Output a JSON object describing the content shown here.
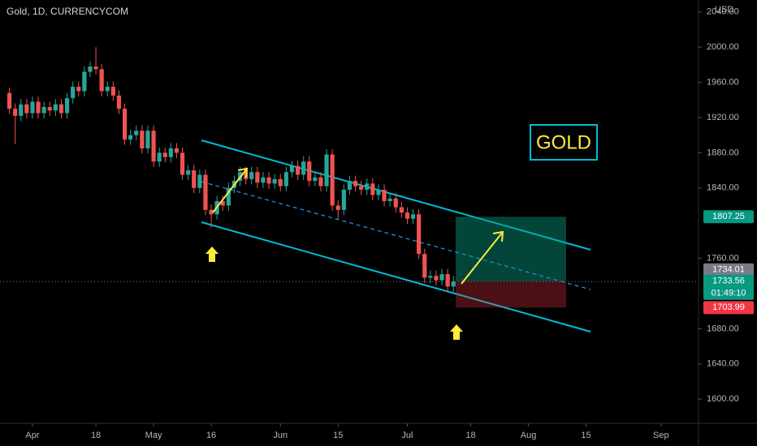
{
  "chart_data": {
    "type": "candlestick",
    "title": "Gold, 1D, CURRENCYCOM",
    "y_unit": "USD",
    "annotation": "GOLD",
    "up_color": "#26a69a",
    "down_color": "#ef5350",
    "x": [
      -4,
      -3,
      -2,
      -1,
      0,
      1,
      2,
      3,
      4,
      5,
      6,
      7,
      8,
      9,
      10,
      11,
      12,
      13,
      14,
      15,
      16,
      17,
      18,
      19,
      20,
      21,
      22,
      23,
      24,
      25,
      26,
      27,
      28,
      29,
      30,
      31,
      32,
      33,
      34,
      35,
      36,
      37,
      38,
      39,
      40,
      41,
      42,
      43,
      44,
      45,
      46,
      47,
      48,
      49,
      50,
      51,
      52,
      53,
      54,
      55,
      56,
      57,
      58,
      59,
      60,
      61,
      62,
      63,
      64,
      65,
      66,
      67,
      68,
      69,
      70,
      71,
      72,
      73
    ],
    "open": [
      1948,
      1930,
      1922,
      1935,
      1925,
      1938,
      1925,
      1932,
      1928,
      1935,
      1925,
      1942,
      1955,
      1950,
      1972,
      1978,
      1975,
      1950,
      1955,
      1945,
      1930,
      1895,
      1900,
      1905,
      1885,
      1905,
      1870,
      1880,
      1875,
      1885,
      1880,
      1855,
      1860,
      1840,
      1855,
      1815,
      1810,
      1825,
      1820,
      1840,
      1848,
      1858,
      1850,
      1858,
      1846,
      1852,
      1845,
      1850,
      1842,
      1858,
      1865,
      1855,
      1870,
      1848,
      1852,
      1842,
      1878,
      1820,
      1815,
      1838,
      1848,
      1842,
      1838,
      1845,
      1832,
      1838,
      1825,
      1828,
      1818,
      1812,
      1805,
      1810,
      1765,
      1738,
      1740,
      1735,
      1742,
      1728
    ],
    "high": [
      1954,
      1936,
      1941,
      1941,
      1944,
      1944,
      1938,
      1938,
      1941,
      1941,
      1948,
      1961,
      1961,
      1978,
      1984,
      2000,
      1981,
      1961,
      1961,
      1951,
      1936,
      1906,
      1911,
      1911,
      1911,
      1911,
      1886,
      1886,
      1891,
      1891,
      1886,
      1866,
      1866,
      1861,
      1861,
      1821,
      1831,
      1831,
      1846,
      1854,
      1864,
      1864,
      1864,
      1864,
      1858,
      1858,
      1856,
      1856,
      1864,
      1871,
      1871,
      1876,
      1876,
      1858,
      1858,
      1884,
      1884,
      1826,
      1844,
      1854,
      1854,
      1848,
      1851,
      1851,
      1844,
      1844,
      1834,
      1834,
      1824,
      1818,
      1816,
      1816,
      1771,
      1746,
      1746,
      1748,
      1748,
      1740
    ],
    "low": [
      1924,
      1890,
      1916,
      1919,
      1919,
      1919,
      1919,
      1922,
      1922,
      1919,
      1919,
      1936,
      1944,
      1944,
      1966,
      1969,
      1944,
      1944,
      1939,
      1924,
      1889,
      1889,
      1894,
      1879,
      1879,
      1864,
      1864,
      1869,
      1869,
      1874,
      1849,
      1849,
      1834,
      1834,
      1809,
      1795,
      1804,
      1814,
      1814,
      1834,
      1842,
      1844,
      1844,
      1840,
      1840,
      1839,
      1839,
      1836,
      1836,
      1852,
      1849,
      1849,
      1842,
      1842,
      1836,
      1836,
      1814,
      1805,
      1809,
      1832,
      1836,
      1832,
      1832,
      1826,
      1826,
      1819,
      1819,
      1812,
      1806,
      1799,
      1799,
      1759,
      1732,
      1732,
      1729,
      1729,
      1722,
      1722
    ],
    "close": [
      1930,
      1922,
      1935,
      1925,
      1938,
      1925,
      1932,
      1928,
      1935,
      1925,
      1942,
      1955,
      1950,
      1972,
      1978,
      1975,
      1950,
      1955,
      1945,
      1930,
      1895,
      1900,
      1905,
      1885,
      1905,
      1870,
      1880,
      1875,
      1885,
      1880,
      1855,
      1860,
      1840,
      1855,
      1815,
      1810,
      1825,
      1820,
      1840,
      1848,
      1858,
      1850,
      1858,
      1846,
      1852,
      1845,
      1850,
      1842,
      1858,
      1865,
      1855,
      1870,
      1848,
      1852,
      1842,
      1878,
      1820,
      1815,
      1838,
      1848,
      1842,
      1838,
      1845,
      1832,
      1838,
      1825,
      1828,
      1818,
      1812,
      1805,
      1810,
      1765,
      1738,
      1740,
      1735,
      1742,
      1728,
      1733.56
    ],
    "xlim": [
      -5.63,
      115.5
    ],
    "xticks": [
      {
        "value": 0,
        "label": "Apr"
      },
      {
        "value": 11,
        "label": "18"
      },
      {
        "value": 21,
        "label": "May"
      },
      {
        "value": 31,
        "label": "16"
      },
      {
        "value": 43,
        "label": "Jun"
      },
      {
        "value": 53,
        "label": "15"
      },
      {
        "value": 65,
        "label": "Jul"
      },
      {
        "value": 76,
        "label": "18"
      },
      {
        "value": 86,
        "label": "Aug"
      },
      {
        "value": 96,
        "label": "15"
      },
      {
        "value": 109,
        "label": "Sep"
      }
    ],
    "ylim": [
      1572.5,
      2053.6
    ],
    "yticks": [
      {
        "value": 2040,
        "label": "2040.00"
      },
      {
        "value": 2000,
        "label": "2000.00"
      },
      {
        "value": 1960,
        "label": "1960.00"
      },
      {
        "value": 1920,
        "label": "1920.00"
      },
      {
        "value": 1880,
        "label": "1880.00"
      },
      {
        "value": 1840,
        "label": "1840.00"
      },
      {
        "value": 1760,
        "label": "1760.00"
      },
      {
        "value": 1680,
        "label": "1680.00"
      },
      {
        "value": 1640,
        "label": "1640.00"
      },
      {
        "value": 1600,
        "label": "1600.00"
      }
    ],
    "target": {
      "value": 1807.25,
      "label": "1807.25",
      "color": "#089981"
    },
    "entry": {
      "value": 1734.01,
      "label": "1734.01",
      "color": "#787b86"
    },
    "last": {
      "value": 1733.56,
      "label": "1733.56",
      "countdown": "01:49:10",
      "color": "#089981"
    },
    "stop": {
      "value": 1703.99,
      "label": "1703.99",
      "color": "#f23645"
    }
  }
}
